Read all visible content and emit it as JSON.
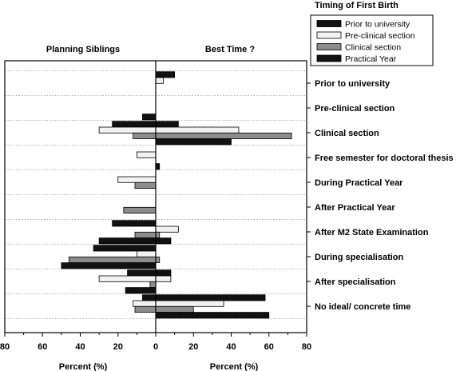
{
  "chart_data": {
    "type": "bar",
    "orientation": "horizontal",
    "legend": {
      "title": "Timing of First Birth",
      "placement": "top-right",
      "entries": [
        "Prior to university",
        "Pre-clinical section",
        "Clinical section",
        "Practical Year"
      ]
    },
    "panels": [
      {
        "title": "Planning Siblings",
        "xlabel": "Percent (%)",
        "xlim": [
          80,
          0
        ],
        "direction": "reversed"
      },
      {
        "title": "Best Time ?",
        "xlabel": "Percent (%)",
        "xlim": [
          0,
          80
        ],
        "direction": "normal"
      }
    ],
    "x_ticks_left": [
      "80",
      "60",
      "40",
      "20",
      "0"
    ],
    "x_ticks_right": [
      "20",
      "40",
      "60",
      "80"
    ],
    "grid": "dotted horizontal lines between category groups",
    "categories": [
      "Prior to university",
      "Pre-clinical section",
      "Clinical section",
      "Free semester for doctoral thesis",
      "During Practical Year",
      "After Practical Year",
      "After M2 State Examination",
      "During specialisation",
      "After specialisation",
      "No ideal/ concrete time"
    ],
    "series": [
      {
        "name": "Prior to university",
        "color": "#111111",
        "planning_siblings": [
          0,
          0,
          23,
          0,
          0,
          0,
          23,
          33,
          15,
          7
        ],
        "best_time": [
          10,
          0,
          12,
          0,
          0,
          0,
          0,
          0,
          8,
          58
        ]
      },
      {
        "name": "Pre-clinical section",
        "color": "#f2f2f2",
        "planning_siblings": [
          0,
          0,
          30,
          10,
          20,
          0,
          0,
          10,
          30,
          12
        ],
        "best_time": [
          4,
          0,
          44,
          0,
          0,
          0,
          12,
          0,
          8,
          36
        ]
      },
      {
        "name": "Clinical section",
        "color": "#8c8c8c",
        "planning_siblings": [
          0,
          0,
          12,
          0,
          11,
          17,
          11,
          46,
          3,
          11
        ],
        "best_time": [
          0,
          0,
          72,
          0,
          0,
          0,
          2,
          2,
          0,
          20
        ]
      },
      {
        "name": "Practical Year",
        "color": "#111111",
        "planning_siblings": [
          0,
          7,
          0,
          0,
          0,
          0,
          30,
          50,
          16,
          0
        ],
        "best_time": [
          0,
          0,
          40,
          2,
          0,
          0,
          8,
          0,
          0,
          60
        ]
      }
    ]
  }
}
